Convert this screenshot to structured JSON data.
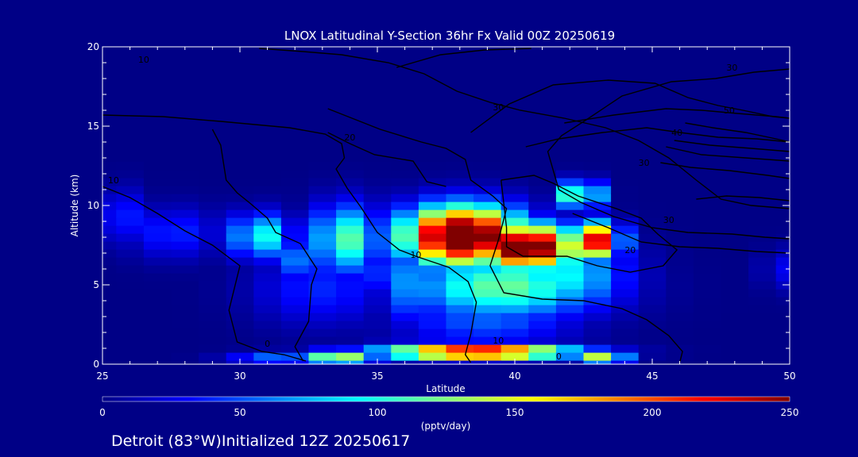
{
  "chart_data": {
    "type": "heatmap",
    "title": "LNOX Latitudinal Y-Section 36hr  Fx Valid 00Z 20250619",
    "xlabel": "Latitude",
    "ylabel": "Altitude (km)",
    "xlim": [
      25,
      50
    ],
    "ylim": [
      0,
      20
    ],
    "x_ticks": [
      "25",
      "30",
      "35",
      "40",
      "45",
      "50"
    ],
    "y_ticks": [
      "0",
      "5",
      "10",
      "15",
      "20"
    ],
    "colorbar": {
      "label": "(pptv/day)",
      "range": [
        0,
        250
      ],
      "ticks": [
        "0",
        "50",
        "100",
        "150",
        "200",
        "250"
      ],
      "colors": [
        "#000086",
        "#0000ff",
        "#0080ff",
        "#00ffff",
        "#80ff80",
        "#ffff00",
        "#ff8000",
        "#ff0000",
        "#800000"
      ]
    },
    "field": {
      "x": [
        25,
        26,
        27,
        28,
        29,
        30,
        31,
        32,
        33,
        34,
        35,
        36,
        37,
        38,
        39,
        40,
        41,
        42,
        43,
        44,
        45,
        46,
        47,
        48,
        49,
        50
      ],
      "y": [
        0,
        0.5,
        1,
        1.5,
        2,
        2.5,
        3,
        3.5,
        4,
        4.5,
        5,
        5.5,
        6,
        6.5,
        7,
        7.5,
        8,
        8.5,
        9,
        9.5,
        10,
        10.5,
        11,
        11.5,
        12,
        12.5
      ],
      "blobs": [
        {
          "lat": 25.6,
          "alt": 9.3,
          "sx": 0.6,
          "sy": 1.2,
          "v": 45
        },
        {
          "lat": 27.6,
          "alt": 8.3,
          "sx": 1.2,
          "sy": 1.1,
          "v": 40
        },
        {
          "lat": 30.8,
          "alt": 8.1,
          "sx": 0.8,
          "sy": 1.0,
          "v": 100
        },
        {
          "lat": 32.4,
          "alt": 6.6,
          "sx": 0.7,
          "sy": 0.9,
          "v": 70
        },
        {
          "lat": 33.9,
          "alt": 7.9,
          "sx": 0.9,
          "sy": 1.5,
          "v": 115
        },
        {
          "lat": 33.0,
          "alt": 4.8,
          "sx": 1.7,
          "sy": 1.6,
          "v": 40
        },
        {
          "lat": 35.7,
          "alt": 5.8,
          "sx": 0.8,
          "sy": 1.1,
          "v": 60
        },
        {
          "lat": 38.1,
          "alt": 8.1,
          "sx": 1.5,
          "sy": 1.3,
          "v": 300
        },
        {
          "lat": 40.4,
          "alt": 7.4,
          "sx": 1.4,
          "sy": 1.0,
          "v": 280
        },
        {
          "lat": 42.8,
          "alt": 7.8,
          "sx": 0.7,
          "sy": 0.8,
          "v": 240
        },
        {
          "lat": 42.4,
          "alt": 10.7,
          "sx": 0.5,
          "sy": 0.6,
          "v": 150
        },
        {
          "lat": 39.6,
          "alt": 4.9,
          "sx": 2.4,
          "sy": 1.4,
          "v": 120
        },
        {
          "lat": 41.7,
          "alt": 5.6,
          "sx": 1.6,
          "sy": 1.6,
          "v": 95
        },
        {
          "lat": 39.0,
          "alt": 2.8,
          "sx": 2.2,
          "sy": 1.1,
          "v": 55
        },
        {
          "lat": 36.2,
          "alt": 5.2,
          "sx": 0.7,
          "sy": 1.8,
          "v": 70
        },
        {
          "lat": 33.6,
          "alt": 0.4,
          "sx": 0.9,
          "sy": 0.35,
          "v": 150
        },
        {
          "lat": 31.4,
          "alt": 0.35,
          "sx": 1.2,
          "sy": 0.3,
          "v": 65
        },
        {
          "lat": 38.6,
          "alt": 0.8,
          "sx": 2.4,
          "sy": 0.35,
          "v": 250
        },
        {
          "lat": 43.2,
          "alt": 0.45,
          "sx": 0.6,
          "sy": 0.35,
          "v": 150
        },
        {
          "lat": 49.8,
          "alt": 6.0,
          "sx": 0.5,
          "sy": 0.9,
          "v": 30
        }
      ]
    },
    "contours": [
      {
        "label": "0",
        "points": [
          [
            25,
            11.2
          ],
          [
            26,
            10.5
          ],
          [
            27,
            9.5
          ],
          [
            28,
            8.4
          ],
          [
            29,
            7.5
          ],
          [
            30,
            6.2
          ],
          [
            29.8,
            4.8
          ],
          [
            29.6,
            3.4
          ],
          [
            29.9,
            1.4
          ],
          [
            30.8,
            0.8
          ],
          [
            31.6,
            0.6
          ],
          [
            32.4,
            0.2
          ]
        ]
      },
      {
        "label": "10",
        "points": [
          [
            25,
            15.7
          ],
          [
            27.2,
            15.6
          ],
          [
            29.3,
            15.3
          ],
          [
            31.8,
            14.9
          ],
          [
            33.1,
            14.5
          ],
          [
            33.7,
            13.9
          ],
          [
            33.8,
            13.0
          ],
          [
            33.5,
            12.3
          ],
          [
            33.9,
            11.1
          ],
          [
            34.4,
            9.9
          ],
          [
            35.0,
            8.3
          ],
          [
            35.8,
            7.2
          ],
          [
            36.4,
            6.8
          ],
          [
            37.6,
            6.1
          ],
          [
            38.3,
            5.2
          ],
          [
            38.6,
            3.9
          ],
          [
            38.4,
            1.9
          ],
          [
            38.2,
            0.6
          ],
          [
            38.4,
            0.1
          ]
        ]
      },
      {
        "label": "10",
        "points": [
          [
            29.0,
            14.8
          ],
          [
            29.3,
            13.8
          ],
          [
            29.5,
            11.6
          ],
          [
            29.9,
            10.8
          ],
          [
            30.4,
            10.1
          ],
          [
            31.0,
            9.2
          ],
          [
            31.3,
            8.3
          ],
          [
            32.2,
            7.6
          ],
          [
            32.8,
            6.0
          ],
          [
            32.6,
            5.0
          ],
          [
            32.5,
            2.7
          ],
          [
            32.0,
            1.1
          ],
          [
            32.3,
            0.2
          ]
        ]
      },
      {
        "label": "20",
        "points": [
          [
            35.7,
            18.7
          ],
          [
            37.3,
            19.5
          ],
          [
            38.9,
            19.8
          ],
          [
            40.6,
            19.9
          ]
        ]
      },
      {
        "label": "30",
        "points": [
          [
            33.2,
            16.1
          ],
          [
            35.1,
            14.8
          ],
          [
            36.6,
            14.0
          ],
          [
            37.5,
            13.6
          ],
          [
            38.2,
            12.9
          ],
          [
            38.4,
            11.6
          ],
          [
            39.2,
            10.6
          ],
          [
            39.7,
            9.8
          ],
          [
            39.4,
            7.8
          ],
          [
            39.1,
            6.2
          ],
          [
            39.6,
            4.5
          ],
          [
            41.0,
            4.1
          ],
          [
            42.5,
            4.0
          ],
          [
            43.9,
            3.5
          ],
          [
            44.8,
            2.8
          ],
          [
            45.6,
            1.8
          ],
          [
            46.1,
            0.8
          ],
          [
            46.0,
            0.1
          ]
        ]
      },
      {
        "label": "40",
        "points": [
          [
            38.4,
            14.6
          ],
          [
            39.8,
            16.4
          ],
          [
            41.4,
            17.6
          ],
          [
            43.4,
            17.9
          ],
          [
            45.1,
            17.7
          ],
          [
            46.3,
            16.8
          ],
          [
            47.4,
            16.3
          ],
          [
            48.3,
            16.0
          ],
          [
            49.4,
            15.6
          ],
          [
            50,
            15.5
          ]
        ]
      },
      {
        "label": "50",
        "points": [
          [
            41.8,
            15.2
          ],
          [
            43.6,
            15.7
          ],
          [
            45.5,
            16.1
          ],
          [
            46.8,
            16.0
          ],
          [
            48.1,
            15.8
          ],
          [
            49.5,
            15.6
          ],
          [
            50,
            15.5
          ]
        ]
      },
      {
        "label": "50",
        "points": [
          [
            40.4,
            13.7
          ],
          [
            41.6,
            14.2
          ],
          [
            43.2,
            14.6
          ],
          [
            44.8,
            14.9
          ],
          [
            46.0,
            14.6
          ],
          [
            47.4,
            14.3
          ],
          [
            48.8,
            14.2
          ],
          [
            50,
            14.0
          ]
        ]
      },
      {
        "label": "30",
        "points": [
          [
            46.2,
            15.2
          ],
          [
            47.2,
            14.9
          ],
          [
            48.4,
            14.6
          ],
          [
            49.5,
            14.2
          ],
          [
            50,
            14.0
          ]
        ]
      },
      {
        "label": "20",
        "points": [
          [
            50,
            18.6
          ],
          [
            48.7,
            18.4
          ],
          [
            47.3,
            18.0
          ],
          [
            45.7,
            17.8
          ],
          [
            43.9,
            16.9
          ],
          [
            42.6,
            15.4
          ],
          [
            41.7,
            14.4
          ],
          [
            41.2,
            13.4
          ],
          [
            41.6,
            11.0
          ],
          [
            42.4,
            10.2
          ],
          [
            43.6,
            9.3
          ],
          [
            45.0,
            8.6
          ],
          [
            46.3,
            8.3
          ],
          [
            47.9,
            8.2
          ],
          [
            49.1,
            8.0
          ],
          [
            50,
            7.9
          ]
        ]
      },
      {
        "label": "40",
        "points": [
          [
            45.5,
            13.7
          ],
          [
            46.8,
            13.2
          ],
          [
            48.4,
            13.0
          ],
          [
            50,
            12.8
          ]
        ]
      },
      {
        "label": "50",
        "points": [
          [
            45.3,
            12.7
          ],
          [
            46.4,
            12.4
          ],
          [
            47.8,
            12.2
          ],
          [
            49.2,
            11.9
          ],
          [
            50,
            11.7
          ]
        ]
      },
      {
        "label": "30",
        "points": [
          [
            46.6,
            10.4
          ],
          [
            47.7,
            10.6
          ],
          [
            48.9,
            10.5
          ],
          [
            50,
            10.3
          ]
        ]
      },
      {
        "label": "50",
        "points": [
          [
            45.8,
            14.1
          ],
          [
            47.1,
            13.8
          ],
          [
            48.6,
            13.6
          ],
          [
            50,
            13.4
          ]
        ]
      },
      {
        "label": "30",
        "points": [
          [
            42.1,
            9.5
          ],
          [
            43.4,
            8.6
          ],
          [
            44.6,
            7.7
          ],
          [
            46.0,
            7.4
          ],
          [
            47.4,
            7.3
          ],
          [
            48.8,
            7.1
          ],
          [
            50,
            7.0
          ]
        ]
      },
      {
        "label": "10",
        "points": [
          [
            39.5,
            11.6
          ],
          [
            40.7,
            11.9
          ],
          [
            41.4,
            11.4
          ],
          [
            42.3,
            10.6
          ],
          [
            43.7,
            9.8
          ],
          [
            44.6,
            9.2
          ],
          [
            45.2,
            8.2
          ],
          [
            45.9,
            7.2
          ],
          [
            45.4,
            6.2
          ],
          [
            44.2,
            5.8
          ],
          [
            43.0,
            6.2
          ],
          [
            41.9,
            6.8
          ],
          [
            40.3,
            6.8
          ],
          [
            39.7,
            7.4
          ],
          [
            39.7,
            8.6
          ],
          [
            39.6,
            10.1
          ],
          [
            39.5,
            11.6
          ]
        ]
      },
      {
        "label": "",
        "points": [
          [
            37.5,
            11.2
          ],
          [
            36.8,
            11.5
          ],
          [
            36.3,
            12.8
          ],
          [
            34.9,
            13.2
          ],
          [
            34.0,
            13.9
          ],
          [
            33.2,
            14.6
          ]
        ]
      },
      {
        "label": "30",
        "points": [
          [
            30.7,
            19.9
          ],
          [
            32.3,
            19.7
          ],
          [
            33.7,
            19.5
          ],
          [
            35.4,
            19.0
          ],
          [
            36.7,
            18.3
          ],
          [
            37.9,
            17.2
          ],
          [
            39.1,
            16.5
          ],
          [
            40.2,
            16.0
          ],
          [
            41.8,
            15.5
          ],
          [
            43.3,
            14.9
          ],
          [
            44.5,
            14.1
          ],
          [
            45.6,
            13.0
          ],
          [
            46.6,
            11.6
          ],
          [
            47.5,
            10.4
          ],
          [
            48.6,
            10.0
          ],
          [
            50,
            9.8
          ]
        ]
      }
    ],
    "contour_label_positions": [
      {
        "text": "10",
        "lat": 25.4,
        "alt": 11.4
      },
      {
        "text": "10",
        "lat": 36.4,
        "alt": 6.7
      },
      {
        "text": "10",
        "lat": 39.4,
        "alt": 1.3
      },
      {
        "text": "10",
        "lat": 26.5,
        "alt": 19.0
      },
      {
        "text": "20",
        "lat": 34.0,
        "alt": 14.1
      },
      {
        "text": "20",
        "lat": 44.2,
        "alt": 7.0
      },
      {
        "text": "30",
        "lat": 44.7,
        "alt": 12.5
      },
      {
        "text": "30",
        "lat": 45.6,
        "alt": 8.9
      },
      {
        "text": "40",
        "lat": 45.9,
        "alt": 14.4
      },
      {
        "text": "50",
        "lat": 47.8,
        "alt": 15.8
      },
      {
        "text": "30",
        "lat": 39.4,
        "alt": 16.0
      },
      {
        "text": "0",
        "lat": 31.0,
        "alt": 1.1
      },
      {
        "text": "30",
        "lat": 47.9,
        "alt": 18.5
      },
      {
        "text": "0",
        "lat": 41.6,
        "alt": 0.3
      }
    ]
  },
  "footer_text": "Detroit (83°W)Initialized 12Z 20250617"
}
